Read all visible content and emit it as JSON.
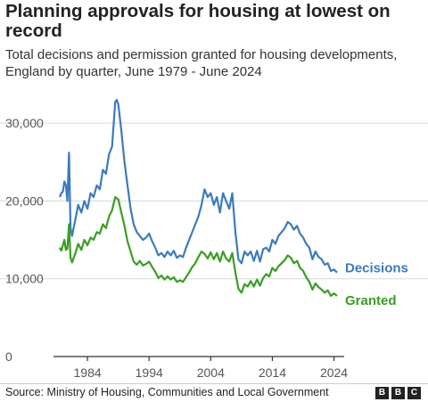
{
  "title": "Planning approvals for housing at lowest on record",
  "subtitle": "Total decisions and permission granted for housing developments, England by quarter, June 1979 - June 2024",
  "source": "Source: Ministry of Housing, Communities and Local Government",
  "brand": [
    "B",
    "B",
    "C"
  ],
  "chart_data": {
    "type": "line",
    "title": "Planning approvals for housing at lowest on record",
    "xlabel": "",
    "ylabel": "",
    "xlim": [
      1979.5,
      2024.5
    ],
    "ylim": [
      0,
      33000
    ],
    "yticks": [
      0,
      10000,
      20000,
      30000
    ],
    "ytick_labels": [
      "0",
      "10,000",
      "20,000",
      "30,000"
    ],
    "xticks": [
      1984,
      1994,
      2004,
      2014,
      2024
    ],
    "xtick_labels": [
      "1984",
      "1994",
      "2004",
      "2014",
      "2024"
    ],
    "grid": true,
    "legend": "end-of-line labels",
    "series": [
      {
        "name": "Decisions",
        "color": "#3b7bbf",
        "points": [
          [
            1979.5,
            20500
          ],
          [
            1979.75,
            21000
          ],
          [
            1980.0,
            21200
          ],
          [
            1980.25,
            22500
          ],
          [
            1980.5,
            22000
          ],
          [
            1980.75,
            20000
          ],
          [
            1981.0,
            26200
          ],
          [
            1981.25,
            16500
          ],
          [
            1981.5,
            15500
          ],
          [
            1982.0,
            17500
          ],
          [
            1982.5,
            19500
          ],
          [
            1983.0,
            18500
          ],
          [
            1983.5,
            20000
          ],
          [
            1984.0,
            19000
          ],
          [
            1984.5,
            21000
          ],
          [
            1985.0,
            20500
          ],
          [
            1985.5,
            22000
          ],
          [
            1986.0,
            21500
          ],
          [
            1986.5,
            24000
          ],
          [
            1987.0,
            23500
          ],
          [
            1987.5,
            26000
          ],
          [
            1988.0,
            27000
          ],
          [
            1988.5,
            32700
          ],
          [
            1988.75,
            33000
          ],
          [
            1989.0,
            32400
          ],
          [
            1989.5,
            29000
          ],
          [
            1990.0,
            25000
          ],
          [
            1990.5,
            22000
          ],
          [
            1991.0,
            19000
          ],
          [
            1991.5,
            17000
          ],
          [
            1992.0,
            16000
          ],
          [
            1992.5,
            15500
          ],
          [
            1993.0,
            15000
          ],
          [
            1993.5,
            15300
          ],
          [
            1994.0,
            15800
          ],
          [
            1994.5,
            14800
          ],
          [
            1995.0,
            14000
          ],
          [
            1995.5,
            13000
          ],
          [
            1996.0,
            13300
          ],
          [
            1996.5,
            12800
          ],
          [
            1997.0,
            13500
          ],
          [
            1997.5,
            13000
          ],
          [
            1998.0,
            13600
          ],
          [
            1998.5,
            12700
          ],
          [
            1999.0,
            13000
          ],
          [
            1999.5,
            12800
          ],
          [
            2000.0,
            14000
          ],
          [
            2000.5,
            15000
          ],
          [
            2001.0,
            16000
          ],
          [
            2001.5,
            17000
          ],
          [
            2002.0,
            18000
          ],
          [
            2002.5,
            19500
          ],
          [
            2003.0,
            21500
          ],
          [
            2003.5,
            20500
          ],
          [
            2004.0,
            21000
          ],
          [
            2004.5,
            19500
          ],
          [
            2005.0,
            20500
          ],
          [
            2005.5,
            18500
          ],
          [
            2006.0,
            21000
          ],
          [
            2006.5,
            20000
          ],
          [
            2007.0,
            19000
          ],
          [
            2007.5,
            21000
          ],
          [
            2008.0,
            16000
          ],
          [
            2008.5,
            12500
          ],
          [
            2009.0,
            12000
          ],
          [
            2009.5,
            13500
          ],
          [
            2010.0,
            13000
          ],
          [
            2010.5,
            13500
          ],
          [
            2011.0,
            12300
          ],
          [
            2011.5,
            13600
          ],
          [
            2012.0,
            12200
          ],
          [
            2012.5,
            13800
          ],
          [
            2013.0,
            14000
          ],
          [
            2013.5,
            13500
          ],
          [
            2014.0,
            15000
          ],
          [
            2014.5,
            14500
          ],
          [
            2015.0,
            15500
          ],
          [
            2015.5,
            16000
          ],
          [
            2016.0,
            16500
          ],
          [
            2016.5,
            17300
          ],
          [
            2017.0,
            17000
          ],
          [
            2017.5,
            16300
          ],
          [
            2018.0,
            16800
          ],
          [
            2018.5,
            15800
          ],
          [
            2019.0,
            15300
          ],
          [
            2019.5,
            14500
          ],
          [
            2020.0,
            14000
          ],
          [
            2020.5,
            12500
          ],
          [
            2021.0,
            13500
          ],
          [
            2021.5,
            12800
          ],
          [
            2022.0,
            12500
          ],
          [
            2022.5,
            11800
          ],
          [
            2023.0,
            12000
          ],
          [
            2023.5,
            11000
          ],
          [
            2024.0,
            11200
          ],
          [
            2024.5,
            10800
          ]
        ]
      },
      {
        "name": "Granted",
        "color": "#3a9e22",
        "points": [
          [
            1979.5,
            14000
          ],
          [
            1979.75,
            13600
          ],
          [
            1980.0,
            14300
          ],
          [
            1980.25,
            15000
          ],
          [
            1980.5,
            13700
          ],
          [
            1980.75,
            13900
          ],
          [
            1981.0,
            17000
          ],
          [
            1981.25,
            12700
          ],
          [
            1981.5,
            12100
          ],
          [
            1982.0,
            13200
          ],
          [
            1982.5,
            14500
          ],
          [
            1983.0,
            13700
          ],
          [
            1983.5,
            15000
          ],
          [
            1984.0,
            14300
          ],
          [
            1984.5,
            15300
          ],
          [
            1985.0,
            15000
          ],
          [
            1985.5,
            16000
          ],
          [
            1986.0,
            15800
          ],
          [
            1986.5,
            17000
          ],
          [
            1987.0,
            16500
          ],
          [
            1987.5,
            18000
          ],
          [
            1988.0,
            18800
          ],
          [
            1988.5,
            20500
          ],
          [
            1989.0,
            20200
          ],
          [
            1989.5,
            18500
          ],
          [
            1990.0,
            16800
          ],
          [
            1990.5,
            14800
          ],
          [
            1991.0,
            13500
          ],
          [
            1991.5,
            12200
          ],
          [
            1992.0,
            11800
          ],
          [
            1992.5,
            12300
          ],
          [
            1993.0,
            11700
          ],
          [
            1993.5,
            11900
          ],
          [
            1994.0,
            12200
          ],
          [
            1994.5,
            11500
          ],
          [
            1995.0,
            10900
          ],
          [
            1995.5,
            10100
          ],
          [
            1996.0,
            10400
          ],
          [
            1996.5,
            9900
          ],
          [
            1997.0,
            10300
          ],
          [
            1997.5,
            9900
          ],
          [
            1998.0,
            10200
          ],
          [
            1998.5,
            9600
          ],
          [
            1999.0,
            9800
          ],
          [
            1999.5,
            9600
          ],
          [
            2000.0,
            10200
          ],
          [
            2000.5,
            10800
          ],
          [
            2001.0,
            11500
          ],
          [
            2001.5,
            12000
          ],
          [
            2002.0,
            12800
          ],
          [
            2002.5,
            13500
          ],
          [
            2003.0,
            13200
          ],
          [
            2003.5,
            12600
          ],
          [
            2004.0,
            13400
          ],
          [
            2004.5,
            12500
          ],
          [
            2005.0,
            13300
          ],
          [
            2005.5,
            12200
          ],
          [
            2006.0,
            13500
          ],
          [
            2006.5,
            12600
          ],
          [
            2007.0,
            12200
          ],
          [
            2007.5,
            13300
          ],
          [
            2008.0,
            10800
          ],
          [
            2008.5,
            8700
          ],
          [
            2009.0,
            8200
          ],
          [
            2009.5,
            9300
          ],
          [
            2010.0,
            9000
          ],
          [
            2010.5,
            9700
          ],
          [
            2011.0,
            9000
          ],
          [
            2011.5,
            9900
          ],
          [
            2012.0,
            9100
          ],
          [
            2012.5,
            10100
          ],
          [
            2013.0,
            10600
          ],
          [
            2013.5,
            10300
          ],
          [
            2014.0,
            11400
          ],
          [
            2014.5,
            11000
          ],
          [
            2015.0,
            11600
          ],
          [
            2015.5,
            12000
          ],
          [
            2016.0,
            12400
          ],
          [
            2016.5,
            13000
          ],
          [
            2017.0,
            12700
          ],
          [
            2017.5,
            12000
          ],
          [
            2018.0,
            12300
          ],
          [
            2018.5,
            11400
          ],
          [
            2019.0,
            11000
          ],
          [
            2019.5,
            10200
          ],
          [
            2020.0,
            9600
          ],
          [
            2020.5,
            8600
          ],
          [
            2021.0,
            9400
          ],
          [
            2021.5,
            8900
          ],
          [
            2022.0,
            8600
          ],
          [
            2022.5,
            8200
          ],
          [
            2023.0,
            8500
          ],
          [
            2023.5,
            7800
          ],
          [
            2024.0,
            8100
          ],
          [
            2024.5,
            7800
          ]
        ]
      }
    ]
  }
}
